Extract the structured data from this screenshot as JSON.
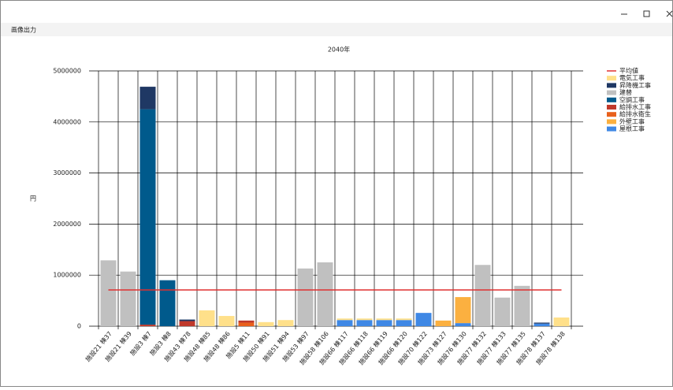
{
  "window": {
    "menu": "画像出力"
  },
  "chart_data": {
    "type": "bar",
    "stacked": true,
    "title": "2040年",
    "y_label": "円",
    "categories": [
      "施設21 棟37",
      "施設21 棟39",
      "施設3 棟7",
      "施設3 棟8",
      "施設43 棟78",
      "施設48 棟85",
      "施設48 棟86",
      "施設5 棟11",
      "施設50 棟91",
      "施設51 棟94",
      "施設53 棟97",
      "施設58 棟106",
      "施設66 棟117",
      "施設66 棟118",
      "施設66 棟119",
      "施設66 棟120",
      "施設70 棟122",
      "施設73 棟127",
      "施設76 棟130",
      "施設77 棟132",
      "施設77 棟133",
      "施設77 棟135",
      "施設78 棟137",
      "施設78 棟138"
    ],
    "series": [
      {
        "name": "平均値",
        "type": "line",
        "color": "#e03030",
        "values": [
          710000,
          710000,
          710000,
          710000,
          710000,
          710000,
          710000,
          710000,
          710000,
          710000,
          710000,
          710000,
          710000,
          710000,
          710000,
          710000,
          710000,
          710000,
          710000,
          710000,
          710000,
          710000,
          710000,
          710000
        ]
      },
      {
        "name": "電気工事",
        "color": "#ffe08a",
        "values": [
          0,
          0,
          0,
          0,
          0,
          310000,
          200000,
          0,
          80000,
          120000,
          0,
          0,
          30000,
          30000,
          30000,
          30000,
          0,
          0,
          0,
          0,
          0,
          0,
          0,
          170000
        ]
      },
      {
        "name": "昇降機工事",
        "color": "#1f3864",
        "values": [
          0,
          0,
          440000,
          0,
          30000,
          0,
          0,
          0,
          0,
          0,
          0,
          0,
          0,
          0,
          0,
          0,
          0,
          0,
          0,
          0,
          0,
          0,
          20000,
          0
        ]
      },
      {
        "name": "建替",
        "color": "#c0c0c0",
        "values": [
          1290000,
          1070000,
          0,
          0,
          0,
          0,
          0,
          0,
          0,
          0,
          1130000,
          1250000,
          0,
          0,
          0,
          0,
          0,
          0,
          0,
          1200000,
          560000,
          790000,
          0,
          0
        ]
      },
      {
        "name": "空調工事",
        "color": "#005a8c",
        "values": [
          0,
          0,
          4220000,
          900000,
          0,
          0,
          0,
          0,
          0,
          0,
          0,
          0,
          0,
          0,
          0,
          0,
          0,
          0,
          0,
          0,
          0,
          0,
          0,
          0
        ]
      },
      {
        "name": "給排水工事",
        "color": "#c0392b",
        "values": [
          0,
          0,
          30000,
          0,
          100000,
          0,
          0,
          40000,
          0,
          0,
          0,
          0,
          0,
          0,
          0,
          0,
          0,
          0,
          0,
          0,
          0,
          0,
          0,
          0
        ]
      },
      {
        "name": "給排水衛生",
        "color": "#e8601c",
        "values": [
          0,
          0,
          0,
          0,
          0,
          0,
          0,
          70000,
          0,
          0,
          0,
          0,
          0,
          0,
          0,
          0,
          0,
          0,
          0,
          0,
          0,
          0,
          0,
          0
        ]
      },
      {
        "name": "外壁工事",
        "color": "#fbb040",
        "values": [
          0,
          0,
          0,
          0,
          0,
          0,
          0,
          0,
          0,
          0,
          0,
          0,
          0,
          0,
          0,
          0,
          0,
          110000,
          510000,
          0,
          0,
          0,
          0,
          0
        ]
      },
      {
        "name": "屋根工事",
        "color": "#3f88e5",
        "values": [
          0,
          0,
          0,
          0,
          0,
          0,
          0,
          0,
          0,
          0,
          0,
          0,
          120000,
          120000,
          120000,
          120000,
          260000,
          0,
          60000,
          0,
          0,
          0,
          50000,
          0
        ]
      }
    ],
    "ylim": [
      0,
      5000000
    ],
    "yticks": [
      0,
      1000000,
      2000000,
      3000000,
      4000000,
      5000000
    ],
    "grid": true
  }
}
